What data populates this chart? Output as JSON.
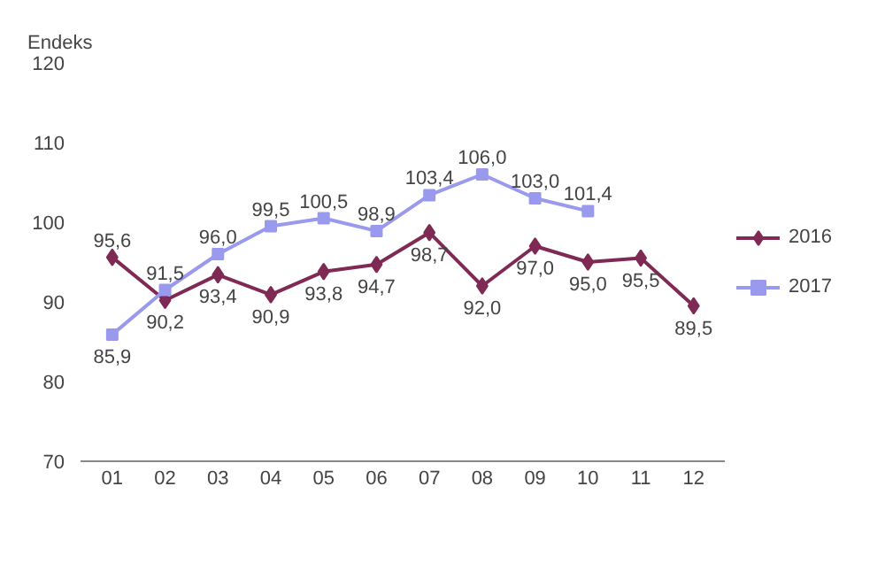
{
  "chart_data": {
    "type": "line",
    "ylabel": "Endeks",
    "categories": [
      "01",
      "02",
      "03",
      "04",
      "05",
      "06",
      "07",
      "08",
      "09",
      "10",
      "11",
      "12"
    ],
    "series": [
      {
        "name": "2016",
        "color": "#7f2a55",
        "marker": "diamond",
        "values": [
          95.6,
          90.2,
          93.4,
          90.9,
          93.8,
          94.7,
          98.7,
          92.0,
          97.0,
          95.0,
          95.5,
          89.5
        ],
        "value_labels": [
          "95,6",
          "90,2",
          "93,4",
          "90,9",
          "93,8",
          "94,7",
          "98,7",
          "92,0",
          "97,0",
          "95,0",
          "95,5",
          "89,5"
        ]
      },
      {
        "name": "2017",
        "color": "#9999ee",
        "marker": "square",
        "values": [
          85.9,
          91.5,
          96.0,
          99.5,
          100.5,
          98.9,
          103.4,
          106.0,
          103.0,
          101.4,
          null,
          null
        ],
        "value_labels": [
          "85,9",
          "91,5",
          "96,0",
          "99,5",
          "100,5",
          "98,9",
          "103,4",
          "106,0",
          "103,0",
          "101,4",
          null,
          null
        ]
      }
    ],
    "ylim": [
      70,
      120
    ],
    "yticks": [
      70,
      80,
      90,
      100,
      110,
      120
    ],
    "grid": false,
    "legend": "right",
    "line_style": "solid"
  }
}
